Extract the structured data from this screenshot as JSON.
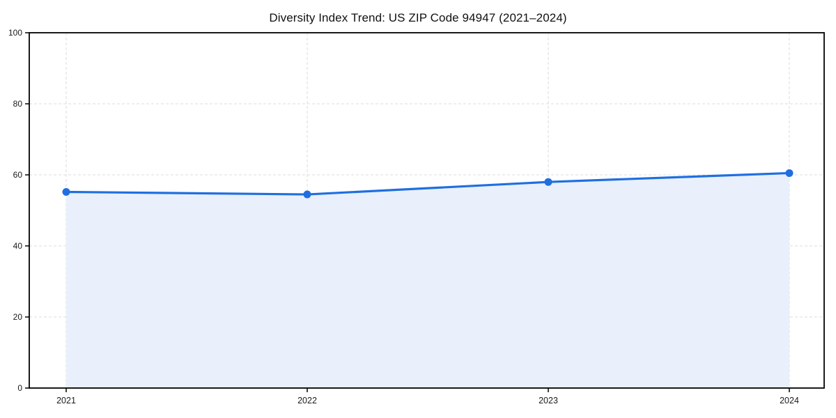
{
  "chart_data": {
    "type": "line",
    "title": "Diversity Index Trend: US ZIP Code 94947 (2021–2024)",
    "x": [
      "2021",
      "2022",
      "2023",
      "2024"
    ],
    "series": [
      {
        "name": "Diversity Index",
        "values": [
          55.2,
          54.5,
          58.0,
          60.5
        ]
      }
    ],
    "xlabel": "",
    "ylabel": "",
    "ylim": [
      0,
      100
    ],
    "yticks": [
      0,
      20,
      40,
      60,
      80,
      100
    ],
    "grid": "dashed",
    "legend": "none",
    "area_fill": true,
    "markers": true,
    "colors": {
      "line": "#1f6fe0",
      "marker": "#1f6fe0",
      "area_fill": "#e9f0fc",
      "grid": "#dedede",
      "axis": "#000000",
      "tick_text": "#1a1a1a",
      "title_text": "#111111",
      "background": "#ffffff"
    }
  }
}
